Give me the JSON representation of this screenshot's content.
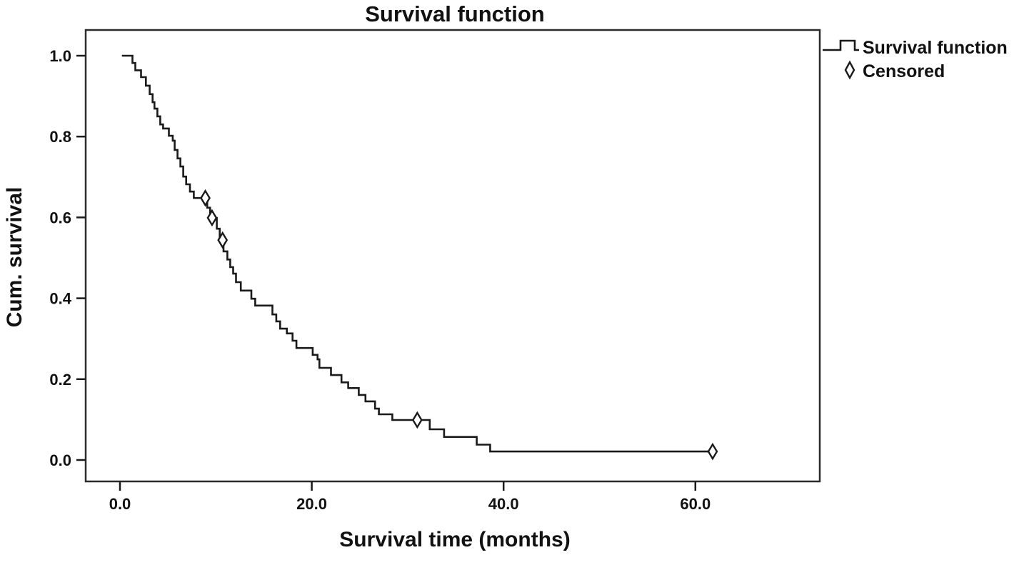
{
  "title": "Survival function",
  "legend": {
    "series_label": "Survival function",
    "censored_label": "Censored"
  },
  "axes": {
    "x_label": "Survival time (months)",
    "y_label": "Cum. survival",
    "x_tick_labels": [
      "0.0",
      "20.0",
      "40.0",
      "60.0"
    ],
    "x_tick_values": [
      0,
      20,
      40,
      60
    ],
    "y_tick_labels": [
      "1.0",
      "0.8",
      "0.6",
      "0.4",
      "0.2",
      "0.0"
    ],
    "y_tick_values": [
      1.0,
      0.8,
      0.6,
      0.4,
      0.2,
      0.0
    ]
  },
  "chart_data": {
    "type": "line",
    "subtype": "kaplan-meier-step",
    "title": "Survival function",
    "xlabel": "Survival time (months)",
    "ylabel": "Cum. survival",
    "xlim": [
      -3.6,
      73.1
    ],
    "ylim": [
      -0.055,
      1.065
    ],
    "grid": false,
    "legend_position": "top-right-outside",
    "line_color": "#1a1a1a",
    "background_color": "#ffffff",
    "series": [
      {
        "name": "Survival function",
        "steps": [
          [
            0.2,
            1.0
          ],
          [
            1.3,
            0.982
          ],
          [
            1.6,
            0.964
          ],
          [
            2.2,
            0.947
          ],
          [
            2.7,
            0.926
          ],
          [
            3.1,
            0.905
          ],
          [
            3.4,
            0.885
          ],
          [
            3.6,
            0.869
          ],
          [
            3.9,
            0.85
          ],
          [
            4.2,
            0.83
          ],
          [
            4.5,
            0.82
          ],
          [
            5.1,
            0.802
          ],
          [
            5.5,
            0.79
          ],
          [
            5.7,
            0.767
          ],
          [
            6.0,
            0.746
          ],
          [
            6.3,
            0.726
          ],
          [
            6.6,
            0.701
          ],
          [
            6.9,
            0.682
          ],
          [
            7.3,
            0.664
          ],
          [
            7.7,
            0.648
          ],
          [
            9.1,
            0.624
          ],
          [
            9.4,
            0.599
          ],
          [
            10.1,
            0.572
          ],
          [
            10.4,
            0.544
          ],
          [
            10.8,
            0.516
          ],
          [
            11.2,
            0.496
          ],
          [
            11.5,
            0.477
          ],
          [
            11.8,
            0.461
          ],
          [
            12.1,
            0.44
          ],
          [
            12.6,
            0.419
          ],
          [
            13.7,
            0.399
          ],
          [
            14.1,
            0.382
          ],
          [
            15.9,
            0.36
          ],
          [
            16.3,
            0.343
          ],
          [
            16.7,
            0.325
          ],
          [
            17.4,
            0.313
          ],
          [
            18.0,
            0.295
          ],
          [
            18.4,
            0.277
          ],
          [
            20.1,
            0.26
          ],
          [
            20.6,
            0.249
          ],
          [
            20.8,
            0.228
          ],
          [
            22.0,
            0.21
          ],
          [
            23.1,
            0.192
          ],
          [
            23.8,
            0.178
          ],
          [
            24.9,
            0.161
          ],
          [
            25.6,
            0.145
          ],
          [
            26.6,
            0.127
          ],
          [
            27.0,
            0.113
          ],
          [
            28.4,
            0.099
          ],
          [
            32.3,
            0.076
          ],
          [
            33.8,
            0.057
          ],
          [
            37.2,
            0.038
          ],
          [
            38.6,
            0.021
          ]
        ],
        "curve_end_t": 61.8
      }
    ],
    "censored_points": [
      [
        8.9,
        0.648
      ],
      [
        9.6,
        0.599
      ],
      [
        10.7,
        0.544
      ],
      [
        31.0,
        0.099
      ],
      [
        61.8,
        0.021
      ]
    ]
  }
}
